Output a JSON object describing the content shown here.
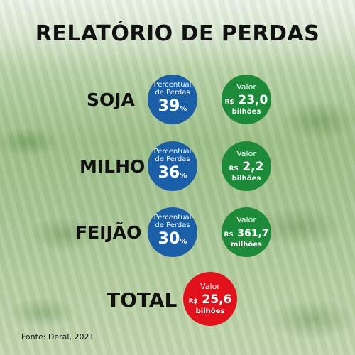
{
  "title": "RELATÓRIO DE PERDAS",
  "rows": [
    {
      "crop": "SOJA",
      "percent_label": "Percentual de Perdas",
      "percent_value": "39",
      "percent_unit": "%",
      "value_label": "Valor",
      "currency": "R$",
      "amount": "23,0",
      "scale": "bilhões"
    },
    {
      "crop": "MILHO",
      "percent_label": "Percentual de Perdas",
      "percent_value": "36",
      "percent_unit": "%",
      "value_label": "Valor",
      "currency": "R$",
      "amount": "2,2",
      "scale": "bilhões"
    },
    {
      "crop": "FEIJÃO",
      "percent_label": "Percentual de Perdas",
      "percent_value": "30",
      "percent_unit": "%",
      "value_label": "Valor",
      "currency": "R$",
      "amount": "361,7",
      "scale": "milhões"
    }
  ],
  "total": {
    "label": "TOTAL",
    "value_label": "Valor",
    "currency": "R$",
    "amount": "25,6",
    "scale": "bilhões"
  },
  "source": "Fonte: Deral, 2021",
  "colors": {
    "percent_circle": "#1a5ea8",
    "value_circle": "#1d8a3a",
    "total_circle": "#e3111b"
  }
}
